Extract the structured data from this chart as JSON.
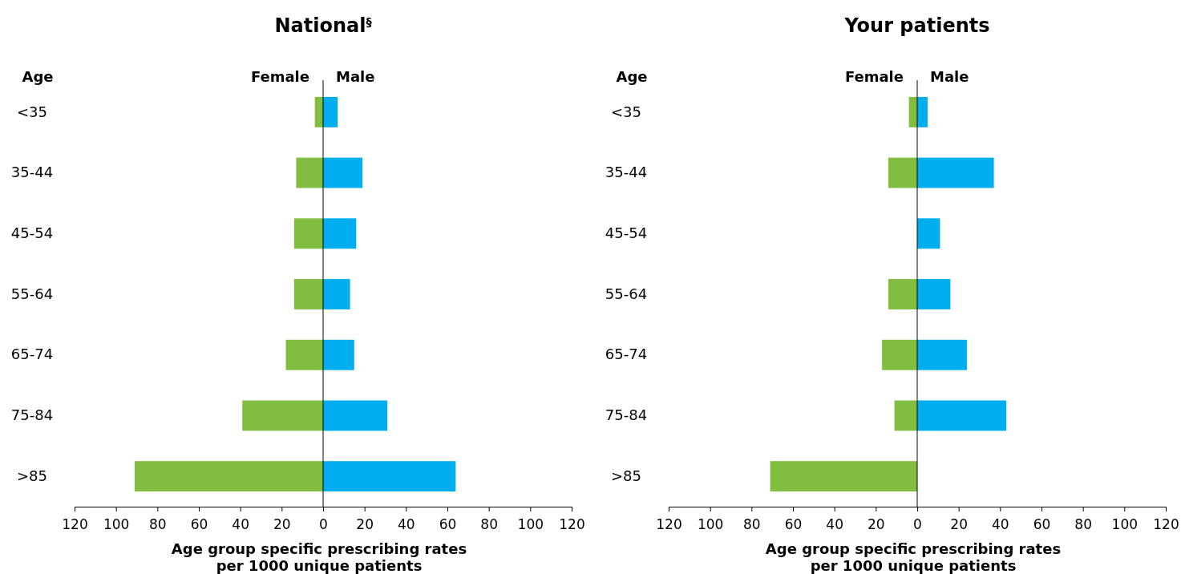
{
  "chart_data": [
    {
      "type": "bar",
      "title": "National$^{§}$",
      "ylabel": "Age",
      "xlabel": "Age group specific prescribing rates\nper 1000 unique patients",
      "orientation": "horizontal",
      "stacked": true,
      "grid": false,
      "categories": [
        "<35",
        "35-44",
        "45-54",
        "55-64",
        "65-74",
        "75-84",
        ">85"
      ],
      "series": [
        {
          "name": "Female",
          "color": "#80bd41",
          "values": [
            -4,
            -13,
            -14,
            -14,
            -18,
            -39,
            -91
          ]
        },
        {
          "name": "Male",
          "color": "#00aeef",
          "values": [
            7,
            19,
            16,
            13,
            15,
            31,
            64
          ]
        }
      ],
      "xlim": [
        -120,
        120
      ],
      "xticks": [
        {
          "value": -120,
          "label": "120"
        },
        {
          "value": -100,
          "label": "100"
        },
        {
          "value": -80,
          "label": "80"
        },
        {
          "value": -60,
          "label": "60"
        },
        {
          "value": -40,
          "label": "40"
        },
        {
          "value": -20,
          "label": "20"
        },
        0,
        20,
        40,
        60,
        80,
        100,
        120
      ],
      "ref_lines": [
        {
          "axis": "x",
          "value": 0
        }
      ]
    },
    {
      "type": "bar",
      "title": "Your patients",
      "ylabel": "Age",
      "xlabel": "Age group specific prescribing rates\nper 1000 unique patients",
      "orientation": "horizontal",
      "stacked": true,
      "grid": false,
      "categories": [
        "<35",
        "35-44",
        "45-54",
        "55-64",
        "65-74",
        "75-84",
        ">85"
      ],
      "series": [
        {
          "name": "Female",
          "color": "#80bd41",
          "values": [
            -4,
            -14,
            0,
            -14,
            -17,
            -11,
            -71
          ]
        },
        {
          "name": "Male",
          "color": "#00aeef",
          "values": [
            5,
            37,
            11,
            16,
            24,
            43,
            0
          ]
        }
      ],
      "xlim": [
        -120,
        120
      ],
      "xticks": [
        {
          "value": -120,
          "label": "120"
        },
        {
          "value": -100,
          "label": "100"
        },
        {
          "value": -80,
          "label": "80"
        },
        {
          "value": -60,
          "label": "60"
        },
        {
          "value": -40,
          "label": "40"
        },
        {
          "value": -20,
          "label": "20"
        },
        0,
        20,
        40,
        60,
        80,
        100,
        120
      ],
      "ref_lines": [
        {
          "axis": "x",
          "value": 0
        }
      ]
    }
  ]
}
